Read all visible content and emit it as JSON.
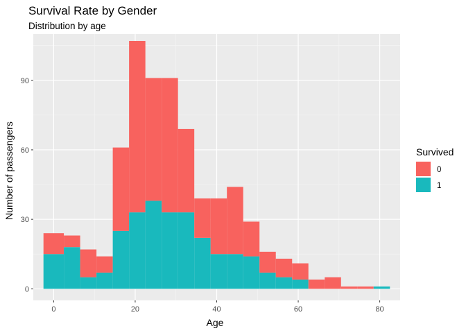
{
  "chart_data": {
    "type": "bar",
    "stacked": true,
    "title": "Survival Rate by Gender",
    "subtitle": "Distribution by age",
    "xlabel": "Age",
    "ylabel": "Number of passengers",
    "xlim": [
      -5,
      85
    ],
    "ylim": [
      -5,
      110
    ],
    "x_ticks": [
      0,
      20,
      40,
      60,
      80
    ],
    "y_ticks": [
      0,
      30,
      60,
      90
    ],
    "grid": true,
    "legend_position": "right",
    "legend_title": "Survived",
    "bin_edges": [
      -2.5,
      2.5,
      6.5,
      10.5,
      14.5,
      18.5,
      22.5,
      26.5,
      30.5,
      34.5,
      38.5,
      42.5,
      46.5,
      50.5,
      54.5,
      58.5,
      62.5,
      66.5,
      70.5,
      74.5,
      78.5,
      82.5
    ],
    "series": [
      {
        "name": "1",
        "color": "#19b9bd",
        "values": [
          15,
          18,
          5,
          7,
          25,
          33,
          38,
          33,
          33,
          22,
          15,
          15,
          14,
          7,
          5,
          4,
          0,
          0,
          0,
          0,
          1
        ]
      },
      {
        "name": "0",
        "color": "#f8625e",
        "values": [
          9,
          5,
          12,
          7,
          36,
          74,
          53,
          58,
          36,
          17,
          24,
          29,
          15,
          9,
          8,
          7,
          4,
          5,
          1,
          1,
          0
        ]
      }
    ]
  }
}
